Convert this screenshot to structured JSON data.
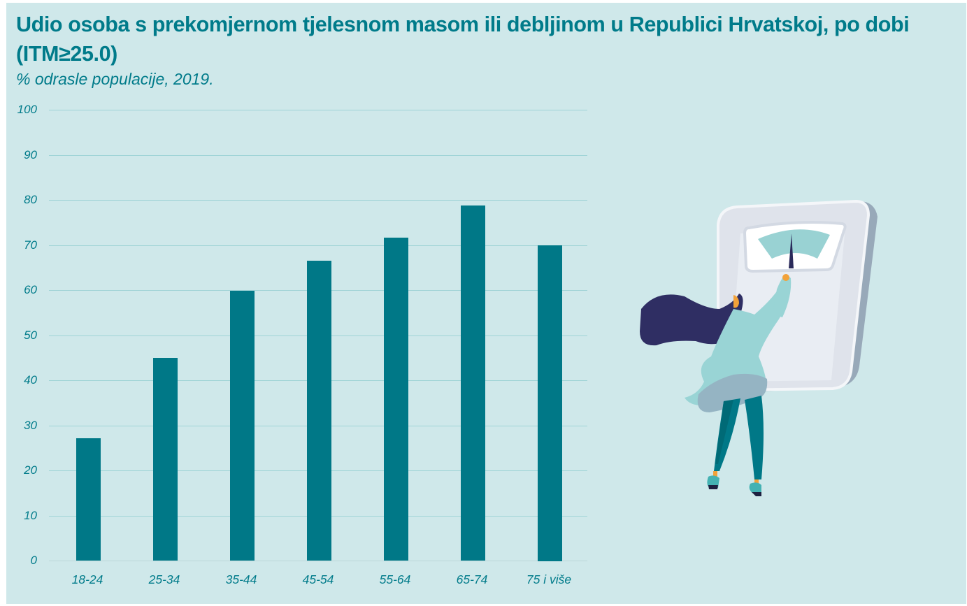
{
  "header": {
    "title": "Udio osoba s prekomjernom tjelesnom masom ili debljinom u Republici Hrvatskoj, po dobi (ITM≥25.0)",
    "subtitle": "% odrasle populacije, 2019."
  },
  "colors": {
    "background": "#cfe8ea",
    "bar": "#007887",
    "text": "#007b8a",
    "gridline": "#9fd3d6"
  },
  "illustration": {
    "description": "woman-reading-bathroom-scale",
    "icon": "scale-illustration"
  },
  "chart_data": {
    "type": "bar",
    "title": "Udio osoba s prekomjernom tjelesnom masom ili debljinom u Republici Hrvatskoj, po dobi (ITM≥25.0)",
    "subtitle": "% odrasle populacije, 2019.",
    "xlabel": "",
    "ylabel": "",
    "categories": [
      "18-24",
      "25-34",
      "35-44",
      "45-54",
      "55-64",
      "65-74",
      "75 i više"
    ],
    "values": [
      27.2,
      45.0,
      59.8,
      66.5,
      71.7,
      78.7,
      70.0
    ],
    "ylim": [
      0,
      100
    ],
    "yticks": [
      0,
      10,
      20,
      30,
      40,
      50,
      60,
      70,
      80,
      90,
      100
    ],
    "grid": true,
    "legend": null
  }
}
